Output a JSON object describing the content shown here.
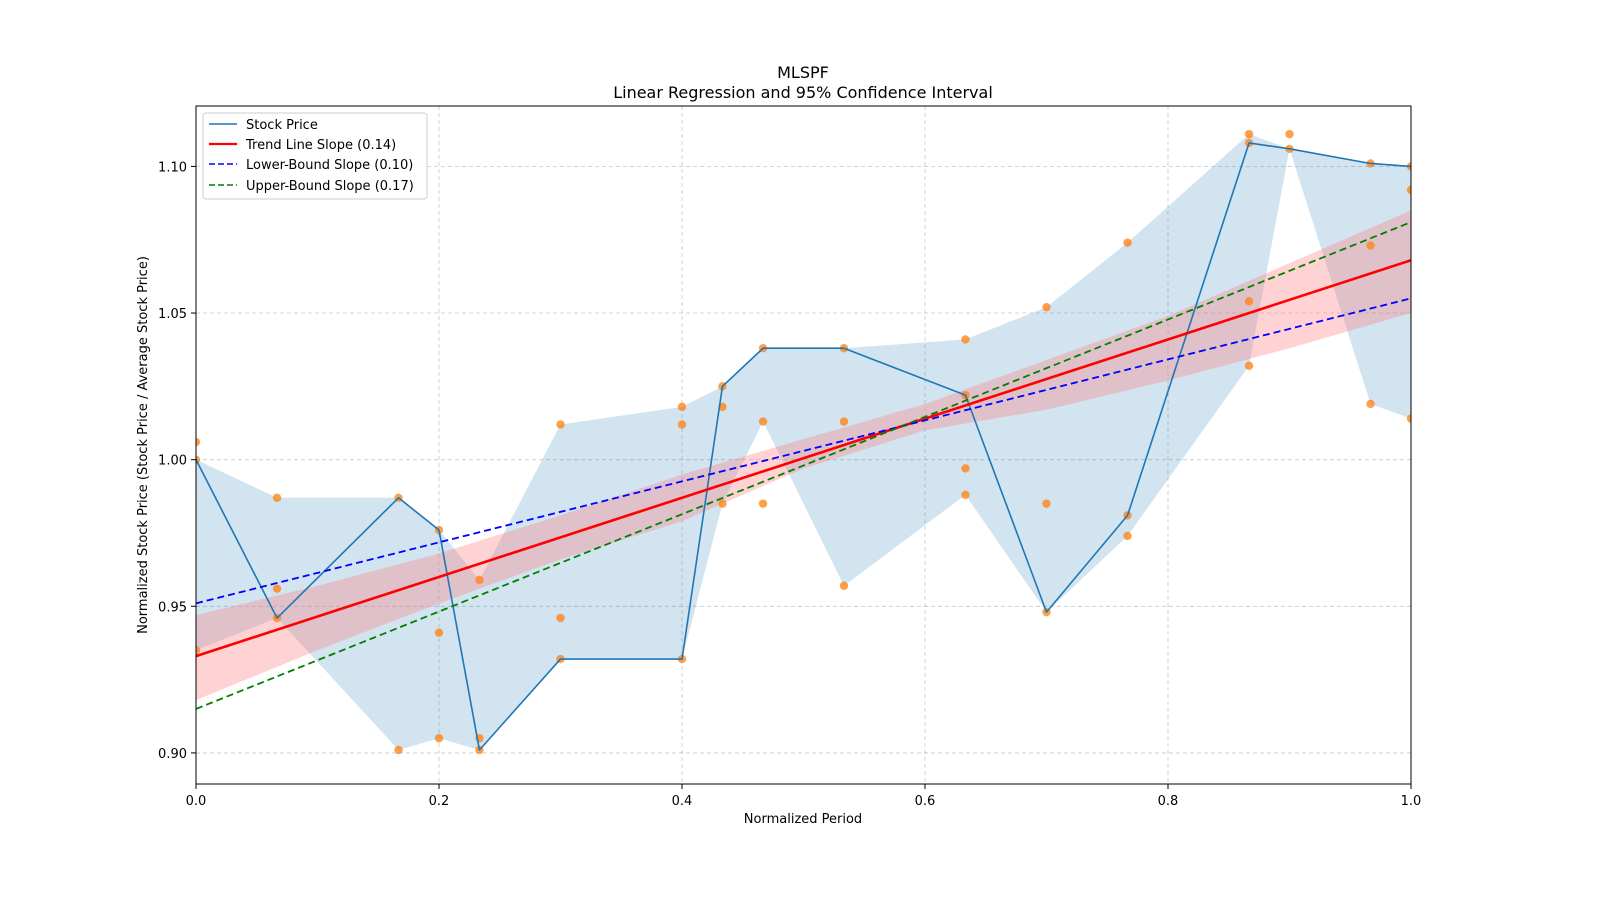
{
  "chart_data": {
    "type": "line",
    "title": "MLSPF",
    "subtitle": "Linear Regression and 95% Confidence Interval",
    "xlabel": "Normalized Period",
    "ylabel": "Normalized Stock Price (Stock Price / Average Stock Price)",
    "xlim": [
      0.0,
      1.0
    ],
    "ylim": [
      0.8894,
      1.1206
    ],
    "grid": true,
    "legend_position": "top-left",
    "x_ticks": [
      0.0,
      0.2,
      0.4,
      0.6,
      0.8,
      1.0
    ],
    "x_tick_labels": [
      "0.0",
      "0.2",
      "0.4",
      "0.6",
      "0.8",
      "1.0"
    ],
    "y_ticks": [
      0.9,
      0.95,
      1.0,
      1.05,
      1.1
    ],
    "y_tick_labels": [
      "0.90",
      "0.95",
      "1.00",
      "1.05",
      "1.10"
    ],
    "colors": {
      "stock": "#1f77b4",
      "stock_band": "#1f77b4",
      "scatter": "#ff7f0e",
      "trend": "#ff0000",
      "trend_band": "#ff8080",
      "lower": "#0000ff",
      "upper": "#008000",
      "grid": "#b0b0b0"
    },
    "legend": [
      {
        "label": "Stock Price",
        "style": "solid",
        "color": "#1f77b4"
      },
      {
        "label": "Trend Line Slope (0.14)",
        "style": "solid",
        "color": "#ff0000"
      },
      {
        "label": "Lower-Bound Slope (0.10)",
        "style": "dashed",
        "color": "#0000ff"
      },
      {
        "label": "Upper-Bound Slope (0.17)",
        "style": "dashed",
        "color": "#008000"
      }
    ],
    "series": [
      {
        "name": "Stock Price",
        "x": [
          0.0,
          0.0667,
          0.1667,
          0.2,
          0.2333,
          0.3,
          0.4,
          0.4333,
          0.4667,
          0.5333,
          0.6333,
          0.7,
          0.7667,
          0.8667,
          0.9,
          0.9667,
          1.0
        ],
        "y": [
          1.0,
          0.946,
          0.987,
          0.976,
          0.901,
          0.932,
          0.932,
          1.025,
          1.038,
          1.038,
          1.022,
          0.948,
          0.981,
          1.108,
          1.106,
          1.101,
          1.1
        ]
      },
      {
        "name": "Trend Line Slope (0.14)",
        "x": [
          0.0,
          1.0
        ],
        "y": [
          0.933,
          1.068
        ]
      },
      {
        "name": "Lower-Bound Slope (0.10)",
        "x": [
          0.0,
          1.0
        ],
        "y": [
          0.951,
          1.055
        ]
      },
      {
        "name": "Upper-Bound Slope (0.17)",
        "x": [
          0.0,
          1.0
        ],
        "y": [
          0.915,
          1.081
        ]
      }
    ],
    "stock_band": {
      "x": [
        0.0,
        0.0667,
        0.1667,
        0.2,
        0.2333,
        0.3,
        0.4,
        0.4333,
        0.4667,
        0.5333,
        0.6333,
        0.7,
        0.7667,
        0.8667,
        0.9,
        0.9667,
        1.0
      ],
      "lower": [
        0.935,
        0.946,
        0.901,
        0.905,
        0.901,
        0.932,
        0.932,
        0.985,
        1.013,
        0.957,
        0.988,
        0.948,
        0.974,
        1.032,
        1.106,
        1.019,
        1.014
      ],
      "upper": [
        1.0,
        0.987,
        0.987,
        0.976,
        0.959,
        1.012,
        1.018,
        1.025,
        1.038,
        1.038,
        1.041,
        1.052,
        1.074,
        1.111,
        1.106,
        1.101,
        1.1
      ]
    },
    "trend_band": {
      "x": [
        0.0,
        0.1,
        0.2,
        0.3,
        0.4,
        0.5,
        0.6,
        0.7,
        0.8,
        0.9,
        1.0
      ],
      "lower": [
        0.918,
        0.935,
        0.951,
        0.966,
        0.979,
        0.997,
        1.01,
        1.017,
        1.027,
        1.038,
        1.05
      ],
      "upper": [
        0.947,
        0.957,
        0.968,
        0.981,
        0.995,
        1.007,
        1.019,
        1.034,
        1.049,
        1.067,
        1.085
      ]
    },
    "scatter": {
      "x": [
        0.0,
        0.0,
        0.0,
        0.0667,
        0.0667,
        0.0667,
        0.1667,
        0.1667,
        0.2,
        0.2,
        0.2,
        0.2333,
        0.2333,
        0.2333,
        0.3,
        0.3,
        0.3,
        0.4,
        0.4,
        0.4,
        0.4333,
        0.4333,
        0.4333,
        0.4667,
        0.4667,
        0.4667,
        0.5333,
        0.5333,
        0.5333,
        0.6333,
        0.6333,
        0.6333,
        0.6333,
        0.7,
        0.7,
        0.7,
        0.7667,
        0.7667,
        0.7667,
        0.8667,
        0.8667,
        0.8667,
        0.8667,
        0.9,
        0.9,
        0.9667,
        0.9667,
        0.9667,
        1.0,
        1.0,
        1.0
      ],
      "y": [
        1.006,
        1.0,
        0.935,
        0.987,
        0.956,
        0.946,
        0.987,
        0.901,
        0.976,
        0.941,
        0.905,
        0.959,
        0.905,
        0.901,
        1.012,
        0.946,
        0.932,
        1.018,
        1.012,
        0.932,
        1.025,
        1.018,
        0.985,
        1.038,
        1.013,
        0.985,
        1.038,
        1.013,
        0.957,
        1.041,
        1.022,
        0.997,
        0.988,
        1.052,
        0.985,
        0.948,
        1.074,
        0.981,
        0.974,
        1.111,
        1.108,
        1.054,
        1.032,
        1.111,
        1.106,
        1.101,
        1.073,
        1.019,
        1.1,
        1.092,
        1.014
      ]
    }
  }
}
